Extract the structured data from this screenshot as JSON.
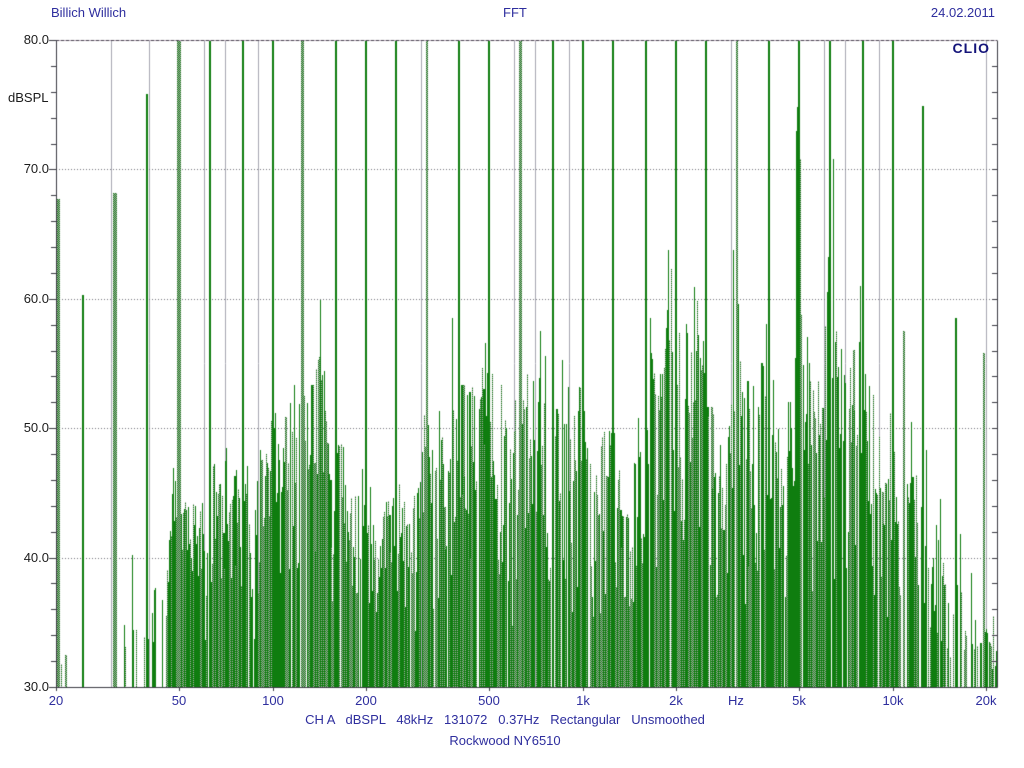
{
  "header": {
    "title_left": "Billich Willich",
    "title_center": "FFT",
    "date": "24.02.2011",
    "brand": "CLIO"
  },
  "footer": {
    "info_line": "CH A   dBSPL   48kHz   131072   0.37Hz   Rectangular   Unsmoothed",
    "device_line": "Rockwood NY6510"
  },
  "colors": {
    "trace_green": "#0f7d0f",
    "dither_gray": "#b2b2b2",
    "grid": "#a8a8b2",
    "grid_dotted": "#74747e",
    "border": "#3c3c44",
    "border_top_dash": "#4a4452",
    "text_blue": "#2e2e9e",
    "text_dark": "#1c1c1c",
    "brand_navy": "#14147a",
    "background": "#ffffff"
  },
  "chart_data": {
    "type": "line",
    "subtype": "fft-spectrum",
    "title": "FFT",
    "ylabel": "dBSPL",
    "x_unit": "Hz",
    "x_scale": "log",
    "xlim": [
      20,
      21700
    ],
    "ylim": [
      30,
      80
    ],
    "grid": {
      "vertical": "log-decade-multiples",
      "horizontal_db": [
        40,
        50,
        60,
        70
      ]
    },
    "legend": "none",
    "y_ticks": [
      {
        "db": 80,
        "label": "80.0"
      },
      {
        "db": 70,
        "label": "70.0"
      },
      {
        "db": 60,
        "label": "60.0"
      },
      {
        "db": 50,
        "label": "50.0"
      },
      {
        "db": 40,
        "label": "40.0"
      },
      {
        "db": 30,
        "label": "30.0"
      }
    ],
    "x_ticks": [
      {
        "hz": 20,
        "label": "20"
      },
      {
        "hz": 50,
        "label": "50"
      },
      {
        "hz": 100,
        "label": "100"
      },
      {
        "hz": 200,
        "label": "200"
      },
      {
        "hz": 500,
        "label": "500"
      },
      {
        "hz": 1000,
        "label": "1k"
      },
      {
        "hz": 2000,
        "label": "2k"
      },
      {
        "hz": 3130,
        "label": "Hz",
        "unit_label": true
      },
      {
        "hz": 5000,
        "label": "5k"
      },
      {
        "hz": 10000,
        "label": "10k"
      },
      {
        "hz": 20000,
        "label": "20k"
      }
    ],
    "clip_db": 80,
    "clipped_tones": [
      [
        50,
        4,
        1
      ],
      [
        63,
        2,
        0
      ],
      [
        80,
        2,
        0
      ],
      [
        100,
        2,
        0
      ],
      [
        125,
        3,
        1
      ],
      [
        160,
        2,
        0
      ],
      [
        200,
        2,
        0
      ],
      [
        250,
        2,
        0
      ],
      [
        315,
        2,
        1
      ],
      [
        400,
        2,
        0
      ],
      [
        500,
        2,
        0
      ],
      [
        630,
        3,
        1
      ],
      [
        800,
        2,
        0
      ],
      [
        1000,
        2,
        0
      ],
      [
        1250,
        2,
        0
      ],
      [
        1600,
        2,
        0
      ],
      [
        2000,
        2,
        0
      ],
      [
        2500,
        2,
        0
      ],
      [
        3150,
        2,
        1
      ],
      [
        4000,
        2,
        0
      ],
      [
        5000,
        2,
        0
      ],
      [
        6300,
        2,
        0
      ],
      [
        8000,
        2,
        0
      ],
      [
        10000,
        2,
        0
      ]
    ],
    "peaks": [
      [
        20.3,
        67.7,
        3,
        1
      ],
      [
        21.6,
        32.5,
        2,
        1
      ],
      [
        24.4,
        60.3,
        2,
        0
      ],
      [
        31,
        68.2,
        4,
        1
      ],
      [
        33.2,
        34.8,
        1,
        0
      ],
      [
        35.2,
        40.2,
        1,
        0
      ],
      [
        36.5,
        34.4,
        1,
        1
      ],
      [
        39.4,
        75.8,
        2,
        0
      ],
      [
        143,
        59.9,
        1,
        0
      ],
      [
        380,
        58.5,
        1,
        0
      ],
      [
        487,
        56.6,
        1,
        0
      ],
      [
        730,
        57.5,
        1,
        0
      ],
      [
        860,
        55.3,
        1,
        0
      ],
      [
        1650,
        58.5,
        1,
        0
      ],
      [
        1895,
        63.8,
        1,
        0
      ],
      [
        1932,
        62.3,
        1,
        1
      ],
      [
        2290,
        60.9,
        1,
        0
      ],
      [
        2345,
        59.8,
        1,
        1
      ],
      [
        3075,
        63.8,
        1,
        0
      ],
      [
        4900,
        73,
        1,
        0
      ],
      [
        4945,
        74.8,
        2,
        0
      ],
      [
        5025,
        70.8,
        1,
        1
      ],
      [
        6270,
        69.2,
        1,
        0
      ],
      [
        6420,
        70.8,
        1,
        0
      ],
      [
        7900,
        61,
        1,
        0
      ],
      [
        10900,
        57.5,
        2,
        1
      ],
      [
        11500,
        50.5,
        1,
        0
      ],
      [
        11900,
        46.4,
        1,
        1
      ],
      [
        12500,
        74.9,
        2,
        0
      ],
      [
        12900,
        48.3,
        1,
        0
      ],
      [
        13800,
        42.5,
        1,
        0
      ],
      [
        14300,
        44.5,
        1,
        0
      ],
      [
        16000,
        58.5,
        2,
        0
      ],
      [
        16500,
        41.8,
        1,
        0
      ],
      [
        18000,
        38.8,
        1,
        0
      ],
      [
        19700,
        55.8,
        2,
        1
      ],
      [
        20600,
        33.5,
        1,
        0
      ],
      [
        21200,
        35.5,
        1,
        1
      ]
    ],
    "noise_floor_envelope": [
      [
        20,
        29
      ],
      [
        21,
        33
      ],
      [
        22,
        29
      ],
      [
        26,
        29
      ],
      [
        31,
        29
      ],
      [
        33,
        35
      ],
      [
        35,
        36
      ],
      [
        37,
        33
      ],
      [
        39,
        35
      ],
      [
        41,
        37.5
      ],
      [
        44,
        38.5
      ],
      [
        46,
        40
      ],
      [
        47.5,
        47
      ],
      [
        49,
        47
      ],
      [
        51,
        45
      ],
      [
        54,
        44.5
      ],
      [
        58,
        44
      ],
      [
        61,
        47
      ],
      [
        64,
        48.5
      ],
      [
        68,
        46
      ],
      [
        71,
        50
      ],
      [
        75,
        46.5
      ],
      [
        79,
        47.5
      ],
      [
        82,
        47.5
      ],
      [
        86,
        45
      ],
      [
        90,
        49
      ],
      [
        95,
        48
      ],
      [
        100,
        52.5
      ],
      [
        105,
        51
      ],
      [
        110,
        52.5
      ],
      [
        115,
        54.5
      ],
      [
        120,
        53
      ],
      [
        126,
        53
      ],
      [
        132,
        53
      ],
      [
        137,
        55
      ],
      [
        141,
        56
      ],
      [
        146,
        55
      ],
      [
        152,
        53
      ],
      [
        158,
        52.5
      ],
      [
        165,
        50
      ],
      [
        172,
        48
      ],
      [
        180,
        46
      ],
      [
        188,
        45
      ],
      [
        196,
        47.5
      ],
      [
        205,
        46
      ],
      [
        212,
        43.5
      ],
      [
        220,
        44
      ],
      [
        230,
        45
      ],
      [
        240,
        46
      ],
      [
        250,
        47
      ],
      [
        262,
        45.5
      ],
      [
        275,
        44.5
      ],
      [
        290,
        46
      ],
      [
        302,
        50
      ],
      [
        310,
        52.5
      ],
      [
        320,
        52
      ],
      [
        335,
        51
      ],
      [
        350,
        53.5
      ],
      [
        365,
        52
      ],
      [
        380,
        57
      ],
      [
        395,
        54
      ],
      [
        410,
        54
      ],
      [
        430,
        53
      ],
      [
        455,
        54
      ],
      [
        480,
        56
      ],
      [
        505,
        55
      ],
      [
        530,
        54
      ],
      [
        560,
        53
      ],
      [
        590,
        52.5
      ],
      [
        620,
        54
      ],
      [
        650,
        55.5
      ],
      [
        685,
        57
      ],
      [
        715,
        57
      ],
      [
        745,
        55.5
      ],
      [
        775,
        56
      ],
      [
        805,
        55.5
      ],
      [
        840,
        54
      ],
      [
        875,
        55
      ],
      [
        910,
        53.5
      ],
      [
        950,
        53.5
      ],
      [
        1000,
        53
      ],
      [
        1040,
        51
      ],
      [
        1080,
        47
      ],
      [
        1120,
        47.5
      ],
      [
        1170,
        51
      ],
      [
        1220,
        52.5
      ],
      [
        1270,
        51
      ],
      [
        1320,
        46
      ],
      [
        1380,
        44
      ],
      [
        1440,
        46.5
      ],
      [
        1500,
        51
      ],
      [
        1560,
        54.5
      ],
      [
        1620,
        57
      ],
      [
        1700,
        55.5
      ],
      [
        1800,
        56
      ],
      [
        1880,
        62
      ],
      [
        1950,
        61.5
      ],
      [
        2030,
        59.5
      ],
      [
        2120,
        58.5
      ],
      [
        2250,
        58
      ],
      [
        2400,
        57.5
      ],
      [
        2520,
        55.5
      ],
      [
        2650,
        52
      ],
      [
        2800,
        48.5
      ],
      [
        2950,
        54
      ],
      [
        3060,
        62
      ],
      [
        3160,
        62
      ],
      [
        3280,
        57
      ],
      [
        3450,
        53
      ],
      [
        3650,
        54
      ],
      [
        3850,
        57
      ],
      [
        3990,
        60
      ],
      [
        4150,
        55
      ],
      [
        4350,
        51.5
      ],
      [
        4550,
        52
      ],
      [
        4750,
        60
      ],
      [
        4880,
        71
      ],
      [
        4960,
        74.5
      ],
      [
        5060,
        70
      ],
      [
        5180,
        62
      ],
      [
        5350,
        57
      ],
      [
        5550,
        53.5
      ],
      [
        5800,
        54.5
      ],
      [
        6050,
        59
      ],
      [
        6220,
        68
      ],
      [
        6360,
        69
      ],
      [
        6550,
        59
      ],
      [
        6750,
        57.5
      ],
      [
        7000,
        57
      ],
      [
        7300,
        56.5
      ],
      [
        7600,
        58
      ],
      [
        7900,
        60.5
      ],
      [
        8100,
        58.5
      ],
      [
        8350,
        55.5
      ],
      [
        8600,
        53.5
      ],
      [
        8900,
        50.5
      ],
      [
        9200,
        48.5
      ],
      [
        9600,
        50
      ],
      [
        9900,
        52
      ],
      [
        10150,
        48
      ],
      [
        10500,
        46
      ],
      [
        10800,
        50
      ],
      [
        11200,
        46.5
      ],
      [
        11600,
        48
      ],
      [
        12000,
        45
      ],
      [
        12400,
        46
      ],
      [
        12800,
        40
      ],
      [
        13300,
        39
      ],
      [
        13900,
        42.5
      ],
      [
        14400,
        43
      ],
      [
        15000,
        39
      ],
      [
        15600,
        40
      ],
      [
        16300,
        39
      ],
      [
        17000,
        36
      ],
      [
        17600,
        33.5
      ],
      [
        18200,
        37
      ],
      [
        19000,
        33.5
      ],
      [
        19800,
        36
      ],
      [
        20500,
        33.5
      ],
      [
        21000,
        34.5
      ],
      [
        21700,
        33
      ]
    ],
    "render_hints": {
      "seed": 7,
      "gap_bands": [
        [
          31,
          0.93
        ],
        [
          45,
          0.8
        ],
        [
          10500,
          0.06
        ],
        [
          13000,
          0.2
        ],
        [
          17000,
          0.42
        ],
        [
          99999,
          0.55
        ]
      ],
      "base_fill": 0.18,
      "dither_ratio": 0.42
    }
  }
}
